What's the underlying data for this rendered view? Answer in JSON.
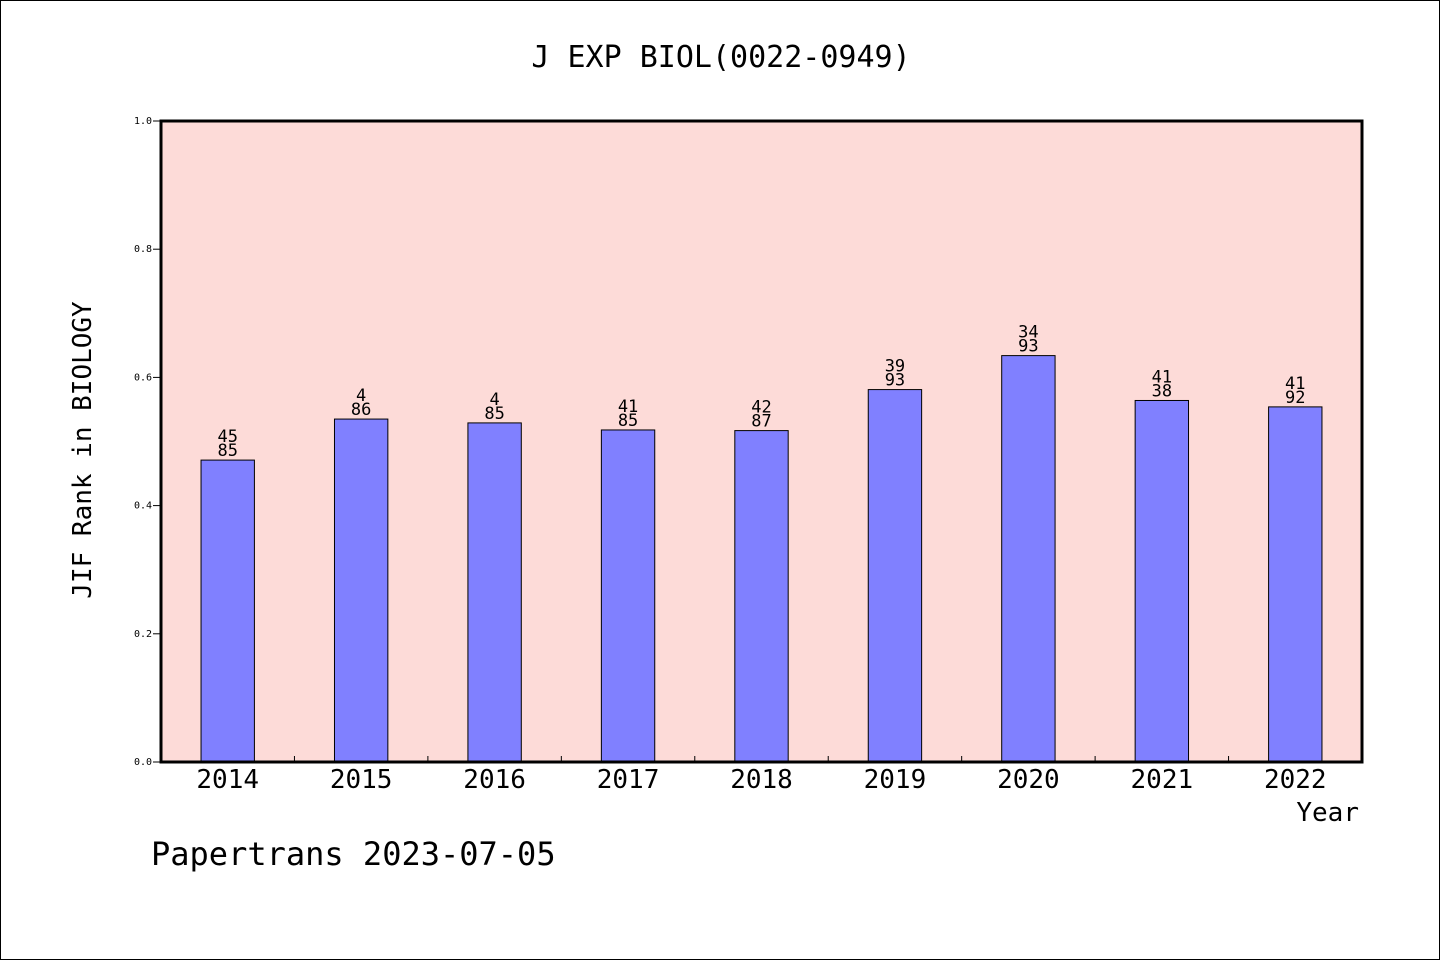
{
  "chart_data": {
    "type": "bar",
    "title": "J EXP BIOL(0022-0949)",
    "xlabel": "Year",
    "ylabel": "JIF Rank in BIOLOGY",
    "categories": [
      "2014",
      "2015",
      "2016",
      "2017",
      "2018",
      "2019",
      "2020",
      "2021",
      "2022"
    ],
    "values": [
      0.471,
      0.535,
      0.529,
      0.518,
      0.517,
      0.581,
      0.634,
      0.564,
      0.554
    ],
    "bar_labels": [
      [
        "45",
        "85"
      ],
      [
        "4",
        "86"
      ],
      [
        "4",
        "85"
      ],
      [
        "41",
        "85"
      ],
      [
        "42",
        "87"
      ],
      [
        "39",
        "93"
      ],
      [
        "34",
        "93"
      ],
      [
        "41",
        "38"
      ],
      [
        "41",
        "92"
      ]
    ],
    "ylim": [
      0,
      1.0
    ],
    "yticks": [
      "0.0",
      "0.2",
      "0.4",
      "0.6",
      "0.8",
      "1.0"
    ],
    "grid": false,
    "colors": {
      "plot_background": "#fddbd8",
      "bar_fill": "#8080ff",
      "bar_edge": "#000000"
    }
  },
  "footer": "Papertrans 2023-07-05"
}
